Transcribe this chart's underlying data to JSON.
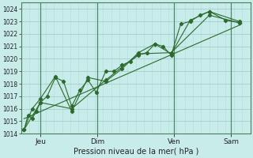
{
  "xlabel": "Pression niveau de la mer( hPa )",
  "bg_color": "#c8ecea",
  "grid_color_major": "#a8cccb",
  "grid_color_minor": "#b8dedd",
  "line_color": "#2d6a2d",
  "ylim": [
    1014,
    1024.5
  ],
  "yticks": [
    1014,
    1015,
    1016,
    1017,
    1018,
    1019,
    1020,
    1021,
    1022,
    1023,
    1024
  ],
  "xlim": [
    0,
    168
  ],
  "day_positions": [
    14,
    56,
    112,
    154
  ],
  "day_labels": [
    "Jeu",
    "Dim",
    "Ven",
    "Sam"
  ],
  "vline_positions": [
    14,
    56,
    112,
    154
  ],
  "series1": {
    "x": [
      2,
      5,
      8,
      11,
      14,
      19,
      25,
      31,
      37,
      43,
      49,
      55,
      62,
      68,
      74,
      80,
      86,
      92,
      98,
      104,
      110,
      117,
      124,
      131,
      138,
      150,
      160
    ],
    "y": [
      1014.3,
      1015.5,
      1015.2,
      1015.8,
      1016.5,
      1017.0,
      1018.5,
      1018.2,
      1016.2,
      1017.5,
      1018.3,
      1017.3,
      1019.0,
      1019.0,
      1019.5,
      1019.8,
      1020.3,
      1020.5,
      1021.2,
      1021.0,
      1020.3,
      1022.8,
      1023.0,
      1023.5,
      1023.8,
      1023.1,
      1022.9
    ]
  },
  "series2": {
    "x": [
      2,
      8,
      14,
      25,
      37,
      49,
      62,
      74,
      86,
      98,
      110,
      124,
      138,
      160
    ],
    "y": [
      1014.3,
      1016.0,
      1016.8,
      1018.6,
      1015.8,
      1018.5,
      1018.2,
      1019.2,
      1020.5,
      1021.2,
      1020.4,
      1023.1,
      1023.8,
      1023.0
    ]
  },
  "series3": {
    "x": [
      2,
      14,
      37,
      62,
      86,
      110,
      138,
      160
    ],
    "y": [
      1014.3,
      1016.5,
      1016.0,
      1018.3,
      1020.4,
      1020.5,
      1023.5,
      1022.9
    ]
  },
  "trend": {
    "x": [
      2,
      160
    ],
    "y": [
      1015.2,
      1022.7
    ]
  }
}
